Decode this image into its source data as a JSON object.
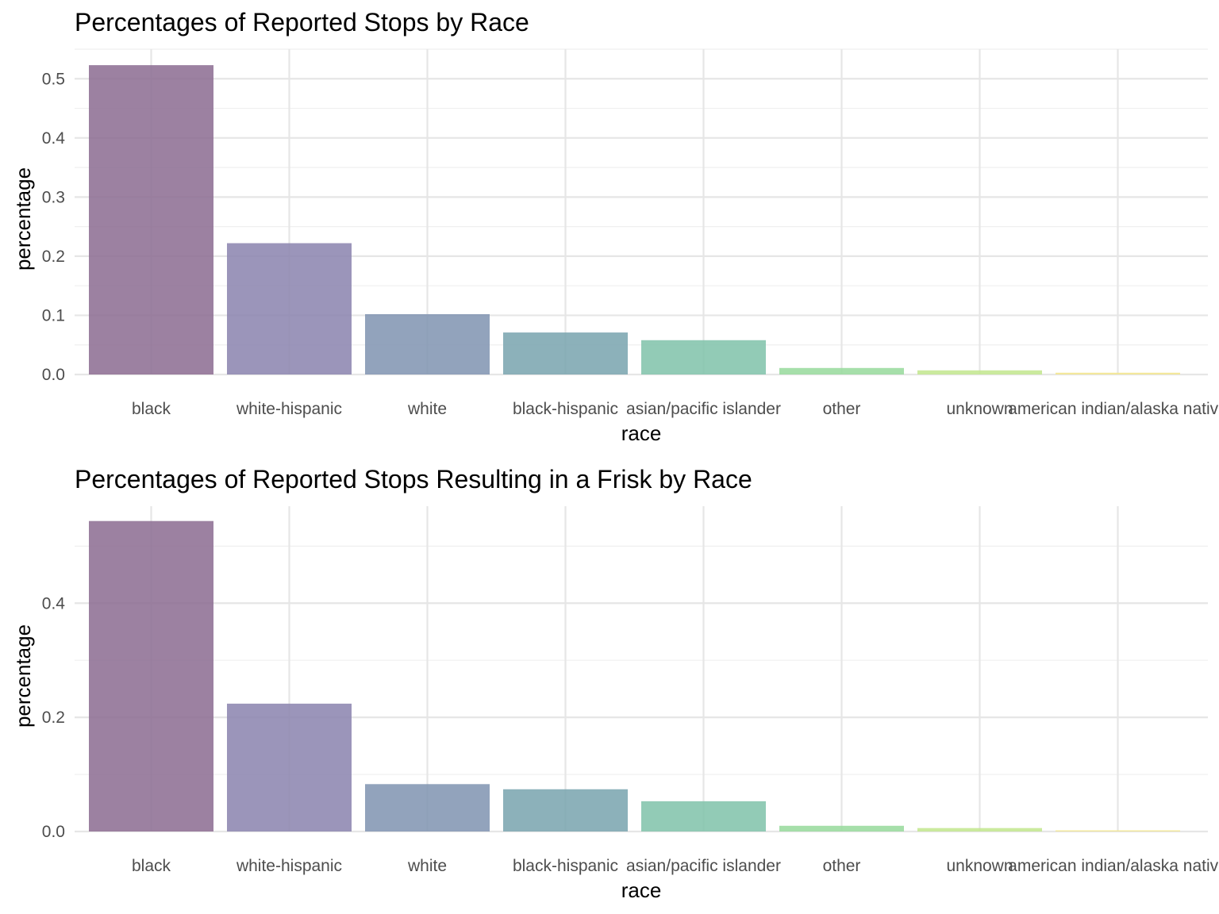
{
  "chart_data": [
    {
      "type": "bar",
      "title": "Percentages of Reported Stops by Race",
      "xlabel": "race",
      "ylabel": "percentage",
      "categories": [
        "black",
        "white-hispanic",
        "white",
        "black-hispanic",
        "asian/pacific islander",
        "other",
        "unknown",
        "american indian/alaska native"
      ],
      "values": [
        0.523,
        0.222,
        0.102,
        0.071,
        0.058,
        0.011,
        0.007,
        0.003
      ],
      "ylim": [
        0,
        0.55
      ],
      "yticks": [
        "0.0",
        "0.1",
        "0.2",
        "0.3",
        "0.4",
        "0.5"
      ],
      "ytick_values": [
        0,
        0.1,
        0.2,
        0.3,
        0.4,
        0.5
      ],
      "grid": true,
      "legend": "none"
    },
    {
      "type": "bar",
      "title": "Percentages of Reported Stops Resulting in a Frisk by Race",
      "xlabel": "race",
      "ylabel": "percentage",
      "categories": [
        "black",
        "white-hispanic",
        "white",
        "black-hispanic",
        "asian/pacific islander",
        "other",
        "unknown",
        "american indian/alaska native"
      ],
      "values": [
        0.544,
        0.224,
        0.083,
        0.074,
        0.053,
        0.01,
        0.006,
        0.002
      ],
      "ylim": [
        0,
        0.57
      ],
      "yticks": [
        "0.0",
        "0.2",
        "0.4"
      ],
      "ytick_values": [
        0,
        0.2,
        0.4
      ],
      "grid": true,
      "legend": "none"
    }
  ],
  "colors": [
    "#8b6b91",
    "#8a82ae",
    "#7f93b0",
    "#78a3ae",
    "#7fc2a9",
    "#96d99b",
    "#c2e68d",
    "#f2e58c"
  ]
}
